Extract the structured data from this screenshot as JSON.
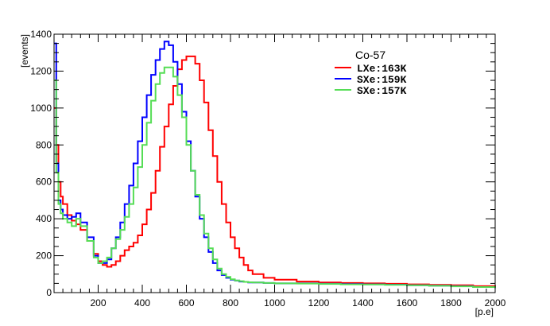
{
  "chart_data": {
    "type": "line",
    "xlabel": "[p.e]",
    "ylabel": "[events]",
    "xlim": [
      0,
      2000
    ],
    "ylim": [
      0,
      1400
    ],
    "x_ticks": [
      200,
      400,
      600,
      800,
      1000,
      1200,
      1400,
      1600,
      1800,
      2000
    ],
    "y_ticks": [
      0,
      200,
      400,
      600,
      800,
      1000,
      1200,
      1400
    ],
    "grid": false,
    "legend": {
      "title": "Co-57",
      "position": "top-right"
    },
    "series": [
      {
        "name": "LXe:163K",
        "color": "#ff0000",
        "x": [
          0,
          10,
          20,
          30,
          40,
          60,
          80,
          100,
          120,
          150,
          180,
          200,
          220,
          240,
          260,
          280,
          300,
          320,
          340,
          360,
          380,
          400,
          420,
          440,
          460,
          480,
          500,
          520,
          540,
          560,
          580,
          600,
          620,
          640,
          660,
          680,
          700,
          720,
          740,
          760,
          780,
          800,
          820,
          840,
          860,
          880,
          900,
          950,
          1000,
          1100,
          1200,
          1300,
          1400,
          1500,
          1600,
          1700,
          1800,
          1900,
          2000
        ],
        "values": [
          1000,
          800,
          600,
          520,
          480,
          420,
          390,
          370,
          340,
          280,
          210,
          170,
          150,
          140,
          150,
          170,
          200,
          230,
          250,
          270,
          310,
          370,
          450,
          540,
          660,
          790,
          900,
          1020,
          1120,
          1210,
          1260,
          1280,
          1280,
          1240,
          1150,
          1030,
          880,
          740,
          600,
          480,
          380,
          300,
          240,
          190,
          150,
          120,
          100,
          80,
          70,
          60,
          55,
          52,
          50,
          48,
          45,
          42,
          40,
          35,
          30
        ]
      },
      {
        "name": "SXe:159K",
        "color": "#0000ff",
        "x": [
          0,
          10,
          20,
          30,
          40,
          60,
          80,
          100,
          120,
          150,
          180,
          200,
          220,
          240,
          260,
          280,
          300,
          320,
          340,
          360,
          380,
          400,
          420,
          440,
          460,
          480,
          500,
          520,
          540,
          560,
          580,
          600,
          620,
          640,
          660,
          680,
          700,
          720,
          740,
          760,
          780,
          800,
          820,
          840,
          860,
          880,
          900,
          950,
          1000,
          1100,
          1200,
          1300,
          1400,
          1500,
          1600,
          1700,
          1800,
          1900,
          2000
        ],
        "values": [
          1350,
          700,
          500,
          450,
          420,
          400,
          410,
          430,
          380,
          300,
          200,
          160,
          160,
          180,
          240,
          300,
          380,
          480,
          580,
          700,
          820,
          950,
          1070,
          1180,
          1260,
          1320,
          1360,
          1340,
          1250,
          1130,
          980,
          820,
          660,
          520,
          400,
          300,
          220,
          160,
          120,
          95,
          80,
          70,
          65,
          60,
          58,
          55,
          55,
          52,
          50,
          50,
          48,
          46,
          45,
          43,
          40,
          38,
          35,
          30,
          25
        ]
      },
      {
        "name": "SXe:157K",
        "color": "#55dd55",
        "x": [
          0,
          10,
          20,
          30,
          40,
          60,
          80,
          100,
          120,
          150,
          180,
          200,
          220,
          240,
          260,
          280,
          300,
          320,
          340,
          360,
          380,
          400,
          420,
          440,
          460,
          480,
          500,
          520,
          540,
          560,
          580,
          600,
          620,
          640,
          660,
          680,
          700,
          720,
          740,
          760,
          780,
          800,
          820,
          840,
          860,
          880,
          900,
          950,
          1000,
          1100,
          1200,
          1300,
          1400,
          1500,
          1600,
          1700,
          1800,
          1900,
          2000
        ],
        "values": [
          1150,
          650,
          480,
          430,
          400,
          380,
          360,
          400,
          360,
          280,
          190,
          160,
          170,
          190,
          240,
          290,
          340,
          410,
          480,
          570,
          680,
          800,
          920,
          1040,
          1130,
          1190,
          1220,
          1220,
          1170,
          1070,
          950,
          800,
          660,
          530,
          420,
          320,
          240,
          180,
          130,
          100,
          85,
          72,
          66,
          62,
          58,
          56,
          55,
          52,
          50,
          49,
          47,
          45,
          44,
          42,
          40,
          37,
          34,
          30,
          26
        ]
      }
    ]
  }
}
